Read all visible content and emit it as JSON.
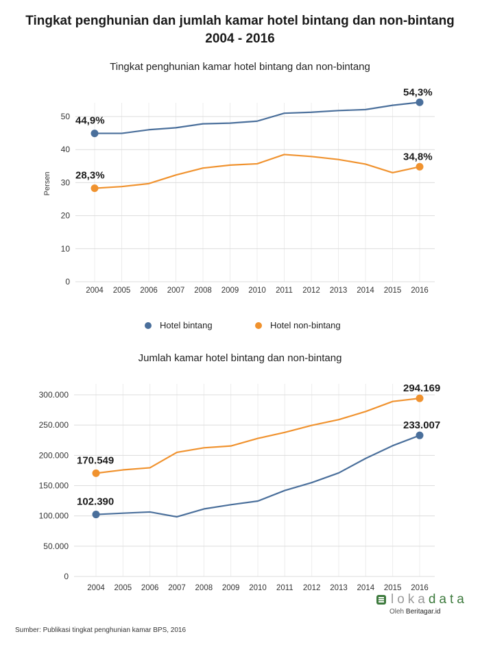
{
  "header": {
    "title_line1": "Tingkat penghunian dan jumlah kamar hotel bintang dan non-bintang",
    "title_line2": "2004 - 2016"
  },
  "legend": {
    "series1": "Hotel bintang",
    "series2": "Hotel non-bintang"
  },
  "colors": {
    "series1": "#4a6f9b",
    "series2": "#f0922e",
    "grid": "#dcdcdc"
  },
  "footer": {
    "source": "Sumber:  Publikasi tingkat penghunian kamar BPS, 2016",
    "logo_lk": "loka",
    "logo_dt": "data",
    "logo_sub_prefix": "Oleh ",
    "logo_sub_brand": "Beritagar.id"
  },
  "chart_data": [
    {
      "type": "line",
      "title": "Tingkat penghunian kamar hotel bintang dan non-bintang",
      "xlabel": "",
      "ylabel": "Persen",
      "ylim": [
        0,
        55
      ],
      "yticks": [
        0,
        10,
        20,
        30,
        40,
        50
      ],
      "ytick_labels": [
        "0",
        "10",
        "20",
        "30",
        "40",
        "50"
      ],
      "categories": [
        "2004",
        "2005",
        "2006",
        "2007",
        "2008",
        "2009",
        "2010",
        "2011",
        "2012",
        "2013",
        "2014",
        "2015",
        "2016"
      ],
      "series": [
        {
          "name": "Hotel bintang",
          "values": [
            44.9,
            44.9,
            46.0,
            46.6,
            47.8,
            48.0,
            48.6,
            51.0,
            51.3,
            51.8,
            52.1,
            53.4,
            54.3
          ],
          "first_label": "44,9%",
          "last_label": "54,3%"
        },
        {
          "name": "Hotel non-bintang",
          "values": [
            28.3,
            28.8,
            29.7,
            32.3,
            34.4,
            35.3,
            35.7,
            38.5,
            37.9,
            37.0,
            35.6,
            33.0,
            34.8
          ],
          "first_label": "28,3%",
          "last_label": "34,8%"
        }
      ]
    },
    {
      "type": "line",
      "title": "Jumlah kamar hotel bintang dan non-bintang",
      "xlabel": "",
      "ylabel": "",
      "ylim": [
        0,
        300000
      ],
      "yticks": [
        0,
        50000,
        100000,
        150000,
        200000,
        250000,
        300000
      ],
      "ytick_labels": [
        "0",
        "50.000",
        "100.000",
        "150.000",
        "200.000",
        "250.000",
        "300.000"
      ],
      "categories": [
        "2004",
        "2005",
        "2006",
        "2007",
        "2008",
        "2009",
        "2010",
        "2011",
        "2012",
        "2013",
        "2014",
        "2015",
        "2016"
      ],
      "series": [
        {
          "name": "Hotel bintang",
          "values": [
            102390,
            104500,
            106500,
            98500,
            111500,
            118500,
            124500,
            142000,
            155000,
            171000,
            195000,
            216000,
            233007
          ],
          "first_label": "102.390",
          "last_label": "233.007"
        },
        {
          "name": "Hotel non-bintang",
          "values": [
            170549,
            176000,
            179500,
            205000,
            212500,
            215500,
            228000,
            238000,
            249500,
            259000,
            272500,
            289000,
            294169
          ],
          "first_label": "170.549",
          "last_label": "294.169"
        }
      ]
    }
  ]
}
